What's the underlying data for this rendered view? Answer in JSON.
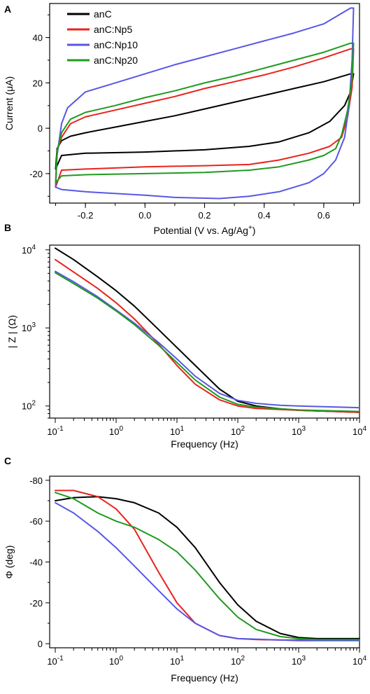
{
  "colors": {
    "anC": "#000000",
    "anC:Np5": "#e8231c",
    "anC:Np10": "#5757e6",
    "anC:Np20": "#1f9a1f"
  },
  "chart_data": [
    {
      "panel": "A",
      "type": "line",
      "xlabel": "Potential (V vs. Ag/Ag",
      "xlabel_sup": "+",
      "xlabel_end": ")",
      "ylabel": "Current (μA)",
      "xlim": [
        -0.32,
        0.72
      ],
      "ylim": [
        -33,
        55
      ],
      "xticks": [
        -0.2,
        0.0,
        0.2,
        0.4,
        0.6
      ],
      "xtick_labels": [
        "-0.2",
        "0.0",
        "0.2",
        "0.4",
        "0.6"
      ],
      "yticks": [
        -20,
        0,
        20,
        40
      ],
      "ytick_labels": [
        "-20",
        "0",
        "20",
        "40"
      ],
      "legend": [
        "anC",
        "anC:Np5",
        "anC:Np10",
        "anC:Np20"
      ],
      "legend_position": "top-left",
      "series": [
        {
          "name": "anC",
          "upper": [
            [
              -0.3,
              -18
            ],
            [
              -0.295,
              -9
            ],
            [
              -0.28,
              -5.5
            ],
            [
              -0.25,
              -3.5
            ],
            [
              -0.2,
              -2
            ],
            [
              -0.1,
              0.5
            ],
            [
              0.0,
              3
            ],
            [
              0.1,
              5.5
            ],
            [
              0.2,
              8.5
            ],
            [
              0.3,
              11.5
            ],
            [
              0.4,
              14.5
            ],
            [
              0.5,
              17.5
            ],
            [
              0.6,
              20.5
            ],
            [
              0.69,
              24
            ]
          ],
          "lower": [
            [
              -0.3,
              -18
            ],
            [
              -0.28,
              -12
            ],
            [
              -0.2,
              -11
            ],
            [
              0.0,
              -10.5
            ],
            [
              0.2,
              -9.5
            ],
            [
              0.35,
              -8
            ],
            [
              0.45,
              -6
            ],
            [
              0.55,
              -2
            ],
            [
              0.62,
              3
            ],
            [
              0.67,
              10
            ],
            [
              0.69,
              16
            ],
            [
              0.7,
              24
            ]
          ]
        },
        {
          "name": "anC:Np5",
          "upper": [
            [
              -0.3,
              -26
            ],
            [
              -0.295,
              -10
            ],
            [
              -0.28,
              -4
            ],
            [
              -0.25,
              2
            ],
            [
              -0.2,
              5
            ],
            [
              -0.1,
              8
            ],
            [
              0.0,
              11
            ],
            [
              0.1,
              14
            ],
            [
              0.2,
              17.5
            ],
            [
              0.3,
              20.5
            ],
            [
              0.4,
              23.5
            ],
            [
              0.5,
              27
            ],
            [
              0.6,
              31
            ],
            [
              0.69,
              35
            ]
          ],
          "lower": [
            [
              -0.3,
              -26
            ],
            [
              -0.28,
              -18.5
            ],
            [
              -0.2,
              -18
            ],
            [
              0.0,
              -17
            ],
            [
              0.2,
              -16.5
            ],
            [
              0.35,
              -16
            ],
            [
              0.45,
              -14
            ],
            [
              0.55,
              -11
            ],
            [
              0.62,
              -8
            ],
            [
              0.66,
              -4
            ],
            [
              0.68,
              5
            ],
            [
              0.695,
              18
            ],
            [
              0.7,
              35
            ]
          ]
        },
        {
          "name": "anC:Np10",
          "upper": [
            [
              -0.3,
              -26
            ],
            [
              -0.295,
              -12
            ],
            [
              -0.28,
              2
            ],
            [
              -0.26,
              9
            ],
            [
              -0.2,
              16
            ],
            [
              -0.1,
              20
            ],
            [
              0.0,
              24
            ],
            [
              0.1,
              28
            ],
            [
              0.2,
              31.5
            ],
            [
              0.3,
              35
            ],
            [
              0.4,
              38.5
            ],
            [
              0.5,
              42
            ],
            [
              0.6,
              46
            ],
            [
              0.69,
              53
            ]
          ],
          "lower": [
            [
              -0.3,
              -26
            ],
            [
              -0.28,
              -27
            ],
            [
              -0.2,
              -28
            ],
            [
              0.0,
              -29.5
            ],
            [
              0.1,
              -30.5
            ],
            [
              0.25,
              -31
            ],
            [
              0.35,
              -30
            ],
            [
              0.45,
              -28
            ],
            [
              0.55,
              -24
            ],
            [
              0.6,
              -20
            ],
            [
              0.64,
              -14
            ],
            [
              0.67,
              -4
            ],
            [
              0.685,
              10
            ],
            [
              0.695,
              30
            ],
            [
              0.7,
              53
            ]
          ]
        },
        {
          "name": "anC:Np20",
          "upper": [
            [
              -0.3,
              -24
            ],
            [
              -0.295,
              -10
            ],
            [
              -0.28,
              -2
            ],
            [
              -0.25,
              4
            ],
            [
              -0.2,
              7
            ],
            [
              -0.1,
              10
            ],
            [
              0.0,
              13.5
            ],
            [
              0.1,
              16.5
            ],
            [
              0.2,
              20
            ],
            [
              0.3,
              23
            ],
            [
              0.4,
              26.5
            ],
            [
              0.5,
              30
            ],
            [
              0.6,
              33.5
            ],
            [
              0.69,
              37.5
            ]
          ],
          "lower": [
            [
              -0.3,
              -24
            ],
            [
              -0.28,
              -21
            ],
            [
              -0.2,
              -20.5
            ],
            [
              0.0,
              -20
            ],
            [
              0.2,
              -19.5
            ],
            [
              0.35,
              -18.5
            ],
            [
              0.45,
              -17
            ],
            [
              0.55,
              -14
            ],
            [
              0.6,
              -12
            ],
            [
              0.64,
              -9
            ],
            [
              0.66,
              -3
            ],
            [
              0.68,
              8
            ],
            [
              0.695,
              22
            ],
            [
              0.7,
              37.5
            ]
          ]
        }
      ]
    },
    {
      "panel": "B",
      "type": "line",
      "xlabel": "Frequency (Hz)",
      "ylabel": "| Z | (Ω)",
      "xscale": "log",
      "yscale": "log",
      "xlim": [
        0.1,
        10000
      ],
      "ylim": [
        70,
        11500
      ],
      "xticks_exp": [
        "-1",
        "0",
        "1",
        "2",
        "3",
        "4"
      ],
      "yticks_exp": [
        "2",
        "3",
        "4"
      ],
      "tick_base": "10",
      "series": [
        {
          "name": "anC",
          "x": [
            0.1,
            0.2,
            0.5,
            1,
            2,
            5,
            10,
            20,
            50,
            100,
            200,
            500,
            1000,
            10000
          ],
          "y": [
            10500,
            7500,
            4500,
            3000,
            1900,
            950,
            560,
            330,
            165,
            115,
            100,
            92,
            88,
            83
          ]
        },
        {
          "name": "anC:Np5",
          "x": [
            0.1,
            0.2,
            0.5,
            1,
            2,
            5,
            10,
            20,
            50,
            100,
            200,
            500,
            1000,
            10000
          ],
          "y": [
            7500,
            5200,
            3200,
            2100,
            1300,
            620,
            330,
            190,
            120,
            100,
            93,
            90,
            88,
            83
          ]
        },
        {
          "name": "anC:Np10",
          "x": [
            0.1,
            0.2,
            0.5,
            1,
            2,
            5,
            10,
            20,
            50,
            100,
            200,
            500,
            1000,
            10000
          ],
          "y": [
            5300,
            3900,
            2500,
            1700,
            1150,
            650,
            400,
            240,
            145,
            118,
            108,
            102,
            100,
            95
          ]
        },
        {
          "name": "anC:Np20",
          "x": [
            0.1,
            0.2,
            0.5,
            1,
            2,
            5,
            10,
            20,
            50,
            100,
            200,
            500,
            1000,
            10000
          ],
          "y": [
            5100,
            3700,
            2400,
            1650,
            1100,
            600,
            360,
            215,
            130,
            105,
            97,
            92,
            89,
            85
          ]
        }
      ]
    },
    {
      "panel": "C",
      "type": "line",
      "xlabel": "Frequency (Hz)",
      "ylabel": "Φ (deg)",
      "xscale": "log",
      "xlim": [
        0.1,
        10000
      ],
      "ylim": [
        2,
        -82
      ],
      "yticks": [
        0,
        -20,
        -40,
        -60,
        -80
      ],
      "ytick_labels": [
        "0",
        "-20",
        "-40",
        "-60",
        "-80"
      ],
      "xticks_exp": [
        "-1",
        "0",
        "1",
        "2",
        "3",
        "4"
      ],
      "tick_base": "10",
      "series": [
        {
          "name": "anC",
          "x": [
            0.1,
            0.2,
            0.5,
            1,
            2,
            5,
            10,
            20,
            50,
            100,
            200,
            500,
            1000,
            2000,
            5000,
            10000
          ],
          "y": [
            -70,
            -71.5,
            -72,
            -71,
            -69,
            -64,
            -57,
            -47,
            -30,
            -19,
            -11,
            -5,
            -3,
            -2.5,
            -2.5,
            -2.5
          ]
        },
        {
          "name": "anC:Np5",
          "x": [
            0.1,
            0.2,
            0.5,
            1,
            2,
            5,
            10,
            20,
            50,
            100,
            200,
            500,
            1000,
            10000
          ],
          "y": [
            -75,
            -75,
            -72,
            -66,
            -56,
            -35,
            -20,
            -10,
            -4,
            -2.5,
            -2,
            -1.8,
            -1.8,
            -1.8
          ]
        },
        {
          "name": "anC:Np10",
          "x": [
            0.1,
            0.2,
            0.5,
            1,
            2,
            5,
            10,
            20,
            50,
            100,
            1000,
            10000
          ],
          "y": [
            -69,
            -64,
            -55,
            -47,
            -38,
            -26,
            -17,
            -10,
            -4,
            -2.5,
            -1.5,
            -1.5
          ]
        },
        {
          "name": "anC:Np20",
          "x": [
            0.1,
            0.2,
            0.5,
            1,
            2,
            5,
            10,
            20,
            50,
            100,
            200,
            500,
            1000,
            2000,
            10000
          ],
          "y": [
            -74,
            -71,
            -64,
            -60,
            -57,
            -51,
            -45,
            -36,
            -22,
            -13,
            -7,
            -3.5,
            -2.5,
            -2,
            -2
          ]
        }
      ]
    }
  ]
}
